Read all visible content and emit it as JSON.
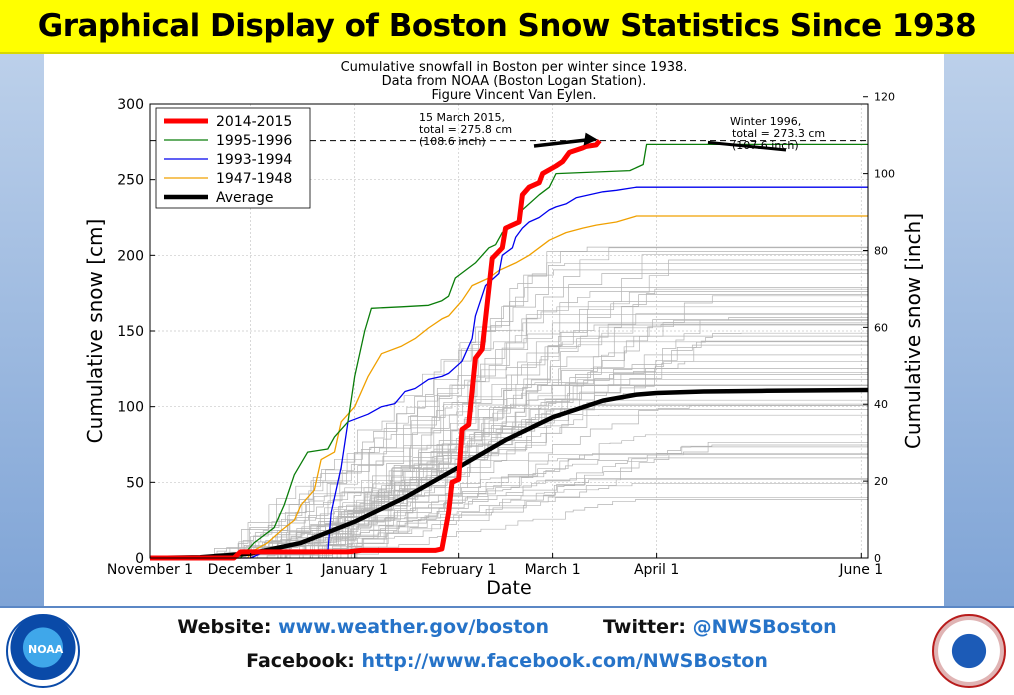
{
  "banner": {
    "title": "Graphical Display of Boston Snow Statistics Since 1938"
  },
  "footer": {
    "website_label": "Website:",
    "website_value": "www.weather.gov/boston",
    "twitter_label": "Twitter:",
    "twitter_value": "@NWSBoston",
    "facebook_label": "Facebook:",
    "facebook_value": "http://www.facebook.com/NWSBoston"
  },
  "chart_data": {
    "type": "line",
    "title_lines": [
      "Cumulative snowfall in Boston per winter since 1938.",
      "Data from NOAA (Boston Logan Station).",
      "Figure Vincent Van Eylen."
    ],
    "xlabel": "Date",
    "ylabel": "Cumulative snow [cm]",
    "y2label": "Cumulative snow [inch]",
    "x_unit": "days since October 1",
    "xlim": [
      31,
      245
    ],
    "ylim": [
      0,
      300
    ],
    "y2lim": [
      0,
      118.11
    ],
    "x_ticks": [
      {
        "x": 31,
        "label": "November 1"
      },
      {
        "x": 61,
        "label": "December 1"
      },
      {
        "x": 92,
        "label": "January 1"
      },
      {
        "x": 123,
        "label": "February 1"
      },
      {
        "x": 151,
        "label": "March 1"
      },
      {
        "x": 182,
        "label": "April 1"
      },
      {
        "x": 243,
        "label": "June 1"
      }
    ],
    "y_ticks": [
      0,
      50,
      100,
      150,
      200,
      250,
      300
    ],
    "y2_ticks": [
      0,
      20,
      40,
      60,
      80,
      100,
      120
    ],
    "grid": true,
    "legend_position": "top-left",
    "reference_line_y": 275.8,
    "annotations": [
      {
        "lines": [
          "15 March 2015,",
          "total = 275.8 cm",
          "(108.6 inch)"
        ],
        "x": 165,
        "y": 275.8
      },
      {
        "lines": [
          "Winter 1996,",
          "total = 273.3 cm",
          "(107.6 inch)"
        ],
        "x": 197,
        "y": 273.3
      }
    ],
    "series": [
      {
        "name": "2014-2015",
        "color": "#ff0000",
        "width": 5,
        "points": [
          [
            31,
            0
          ],
          [
            56,
            0
          ],
          [
            58,
            4
          ],
          [
            90,
            4
          ],
          [
            94,
            5
          ],
          [
            116,
            5
          ],
          [
            118,
            6
          ],
          [
            120,
            30
          ],
          [
            121,
            50
          ],
          [
            123,
            52
          ],
          [
            124,
            85
          ],
          [
            126,
            88
          ],
          [
            128,
            132
          ],
          [
            130,
            138
          ],
          [
            133,
            198
          ],
          [
            136,
            205
          ],
          [
            137,
            218
          ],
          [
            141,
            222
          ],
          [
            142,
            240
          ],
          [
            144,
            245
          ],
          [
            147,
            248
          ],
          [
            148,
            254
          ],
          [
            152,
            259
          ],
          [
            154,
            262
          ],
          [
            156,
            268
          ],
          [
            160,
            271
          ],
          [
            161,
            272
          ],
          [
            164,
            273
          ],
          [
            165,
            275.8
          ]
        ]
      },
      {
        "name": "1995-1996",
        "color": "#0a7d0a",
        "width": 1.3,
        "points": [
          [
            31,
            0
          ],
          [
            58,
            0
          ],
          [
            60,
            5
          ],
          [
            62,
            10
          ],
          [
            68,
            20
          ],
          [
            71,
            35
          ],
          [
            74,
            55
          ],
          [
            78,
            70
          ],
          [
            84,
            72
          ],
          [
            86,
            80
          ],
          [
            90,
            90
          ],
          [
            92,
            120
          ],
          [
            95,
            150
          ],
          [
            97,
            165
          ],
          [
            106,
            166
          ],
          [
            114,
            167
          ],
          [
            118,
            170
          ],
          [
            120,
            173
          ],
          [
            122,
            185
          ],
          [
            128,
            195
          ],
          [
            132,
            205
          ],
          [
            134,
            207
          ],
          [
            136,
            215
          ],
          [
            141,
            222
          ],
          [
            142,
            230
          ],
          [
            147,
            240
          ],
          [
            150,
            245
          ],
          [
            152,
            254
          ],
          [
            174,
            256
          ],
          [
            178,
            260
          ],
          [
            179,
            273.3
          ],
          [
            245,
            273.3
          ]
        ]
      },
      {
        "name": "1993-1994",
        "color": "#0000ee",
        "width": 1.3,
        "points": [
          [
            31,
            0
          ],
          [
            61,
            0
          ],
          [
            64,
            3
          ],
          [
            78,
            3
          ],
          [
            84,
            4
          ],
          [
            85,
            30
          ],
          [
            86,
            40
          ],
          [
            88,
            60
          ],
          [
            90,
            90
          ],
          [
            96,
            95
          ],
          [
            100,
            100
          ],
          [
            104,
            102
          ],
          [
            107,
            110
          ],
          [
            110,
            112
          ],
          [
            112,
            115
          ],
          [
            114,
            118
          ],
          [
            118,
            120
          ],
          [
            120,
            122
          ],
          [
            124,
            130
          ],
          [
            127,
            145
          ],
          [
            128,
            160
          ],
          [
            131,
            180
          ],
          [
            135,
            188
          ],
          [
            136,
            200
          ],
          [
            139,
            205
          ],
          [
            140,
            212
          ],
          [
            142,
            218
          ],
          [
            144,
            222
          ],
          [
            147,
            225
          ],
          [
            150,
            230
          ],
          [
            152,
            232
          ],
          [
            155,
            234
          ],
          [
            158,
            238
          ],
          [
            162,
            240
          ],
          [
            166,
            242
          ],
          [
            170,
            243
          ],
          [
            176,
            245
          ],
          [
            245,
            245
          ]
        ]
      },
      {
        "name": "1947-1948",
        "color": "#f0a000",
        "width": 1.3,
        "points": [
          [
            31,
            0
          ],
          [
            60,
            0
          ],
          [
            62,
            5
          ],
          [
            66,
            10
          ],
          [
            70,
            18
          ],
          [
            74,
            25
          ],
          [
            76,
            35
          ],
          [
            80,
            45
          ],
          [
            82,
            65
          ],
          [
            86,
            70
          ],
          [
            88,
            90
          ],
          [
            92,
            100
          ],
          [
            96,
            120
          ],
          [
            100,
            135
          ],
          [
            106,
            140
          ],
          [
            110,
            145
          ],
          [
            114,
            152
          ],
          [
            118,
            158
          ],
          [
            120,
            160
          ],
          [
            124,
            170
          ],
          [
            127,
            180
          ],
          [
            132,
            185
          ],
          [
            135,
            190
          ],
          [
            140,
            195
          ],
          [
            144,
            200
          ],
          [
            150,
            210
          ],
          [
            155,
            215
          ],
          [
            160,
            218
          ],
          [
            164,
            220
          ],
          [
            170,
            222
          ],
          [
            176,
            226
          ],
          [
            245,
            226
          ]
        ]
      },
      {
        "name": "Average",
        "color": "#000000",
        "width": 4.5,
        "points": [
          [
            31,
            0
          ],
          [
            46,
            0.5
          ],
          [
            61,
            3
          ],
          [
            76,
            10
          ],
          [
            92,
            24
          ],
          [
            107,
            40
          ],
          [
            123,
            60
          ],
          [
            137,
            78
          ],
          [
            151,
            93
          ],
          [
            166,
            104
          ],
          [
            176,
            108
          ],
          [
            182,
            109
          ],
          [
            196,
            110
          ],
          [
            215,
            110.5
          ],
          [
            245,
            111
          ]
        ]
      }
    ]
  }
}
